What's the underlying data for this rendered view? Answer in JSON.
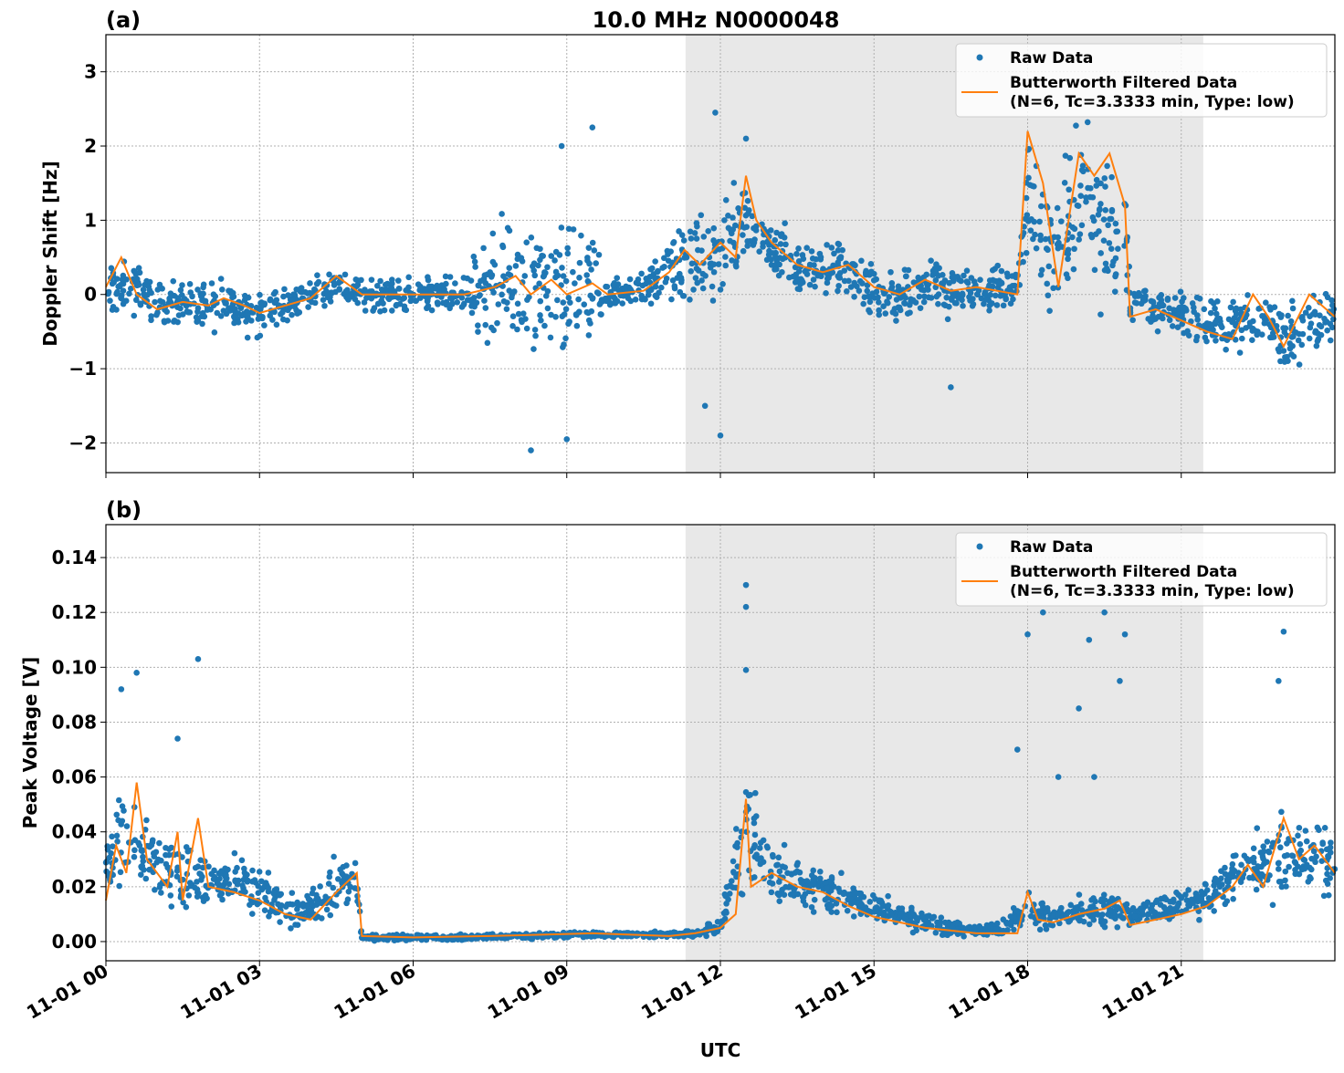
{
  "chart_data": [
    {
      "type": "scatter",
      "panel_label": "(a)",
      "title": "10.0 MHz N0000048",
      "xlabel": "",
      "ylabel": "Doppler Shift [Hz]",
      "xlim_hours": [
        0,
        24
      ],
      "ylim": [
        -2.4,
        3.5
      ],
      "yticks": [
        -2,
        -1,
        0,
        1,
        2,
        3
      ],
      "ytick_labels": [
        "−2",
        "−1",
        "0",
        "1",
        "2",
        "3"
      ],
      "grid": true,
      "shaded_interval_hours": [
        11.32,
        21.43
      ],
      "legend": {
        "placement": "top-right",
        "entries": [
          "Raw Data",
          "Butterworth Filtered Data",
          "(N=6, Tc=3.3333 min, Type: low)"
        ]
      },
      "raw_envelope": [
        [
          0,
          -0.5,
          0.5
        ],
        [
          0.5,
          -0.4,
          0.6
        ],
        [
          1,
          -0.5,
          0.3
        ],
        [
          1.5,
          -0.5,
          0.3
        ],
        [
          2,
          -0.6,
          0.3
        ],
        [
          2.5,
          -0.6,
          0.3
        ],
        [
          3,
          -0.7,
          0.2
        ],
        [
          3.5,
          -0.5,
          0.2
        ],
        [
          4,
          -0.3,
          0.3
        ],
        [
          4.5,
          -0.1,
          0.4
        ],
        [
          5,
          -0.3,
          0.3
        ],
        [
          5.5,
          -0.3,
          0.3
        ],
        [
          6,
          -0.3,
          0.3
        ],
        [
          6.5,
          -0.3,
          0.3
        ],
        [
          7,
          -0.4,
          0.4
        ],
        [
          7.5,
          -1.0,
          1.2
        ],
        [
          8,
          -1.2,
          1.3
        ],
        [
          8.5,
          -1.2,
          1.2
        ],
        [
          9,
          -1.3,
          1.2
        ],
        [
          9.5,
          -1.2,
          1.2
        ],
        [
          9.8,
          -0.3,
          0.3
        ],
        [
          10.5,
          -0.3,
          0.4
        ],
        [
          11,
          -0.3,
          1.0
        ],
        [
          11.5,
          -0.5,
          1.3
        ],
        [
          12,
          -0.3,
          1.4
        ],
        [
          12.5,
          0.2,
          1.8
        ],
        [
          13,
          0.0,
          1.2
        ],
        [
          13.5,
          -0.1,
          0.9
        ],
        [
          14,
          -0.1,
          0.8
        ],
        [
          14.5,
          -0.2,
          0.8
        ],
        [
          15,
          -0.5,
          0.6
        ],
        [
          15.5,
          -0.6,
          0.7
        ],
        [
          16,
          -0.4,
          0.6
        ],
        [
          16.5,
          -0.5,
          0.6
        ],
        [
          17,
          -0.4,
          0.5
        ],
        [
          17.8,
          -0.3,
          0.5
        ],
        [
          18,
          -0.2,
          2.9
        ],
        [
          18.5,
          -0.5,
          1.5
        ],
        [
          19,
          -0.3,
          2.8
        ],
        [
          19.5,
          -0.5,
          2.5
        ],
        [
          19.9,
          -0.5,
          2.3
        ],
        [
          20,
          -0.5,
          0.3
        ],
        [
          20.5,
          -0.6,
          0.2
        ],
        [
          21,
          -0.6,
          0.1
        ],
        [
          21.5,
          -0.8,
          0.0
        ],
        [
          22,
          -1.0,
          0.1
        ],
        [
          22.5,
          -0.8,
          0.3
        ],
        [
          23,
          -1.2,
          0.0
        ],
        [
          23.5,
          -0.9,
          0.2
        ],
        [
          24,
          -0.7,
          0.1
        ]
      ],
      "raw_outliers": [
        [
          8.9,
          2.0
        ],
        [
          9.5,
          2.25
        ],
        [
          11.9,
          2.45
        ],
        [
          12.5,
          2.1
        ],
        [
          8.3,
          -2.1
        ],
        [
          9.0,
          -1.95
        ],
        [
          12.0,
          -1.9
        ],
        [
          11.7,
          -1.5
        ],
        [
          16.5,
          -1.25
        ]
      ],
      "filtered": [
        [
          0,
          0.1
        ],
        [
          0.3,
          0.5
        ],
        [
          0.6,
          0.0
        ],
        [
          1,
          -0.2
        ],
        [
          1.5,
          -0.1
        ],
        [
          2,
          -0.15
        ],
        [
          2.3,
          -0.05
        ],
        [
          2.7,
          -0.15
        ],
        [
          3,
          -0.25
        ],
        [
          3.5,
          -0.15
        ],
        [
          4,
          -0.05
        ],
        [
          4.5,
          0.25
        ],
        [
          4.9,
          0.05
        ],
        [
          5,
          0.0
        ],
        [
          7,
          0.0
        ],
        [
          7.6,
          0.1
        ],
        [
          8,
          0.25
        ],
        [
          8.3,
          0.0
        ],
        [
          8.7,
          0.2
        ],
        [
          9,
          0.0
        ],
        [
          9.5,
          0.15
        ],
        [
          9.8,
          0.0
        ],
        [
          10.5,
          0.05
        ],
        [
          11,
          0.3
        ],
        [
          11.3,
          0.6
        ],
        [
          11.6,
          0.4
        ],
        [
          12,
          0.7
        ],
        [
          12.3,
          0.5
        ],
        [
          12.5,
          1.6
        ],
        [
          12.7,
          1.0
        ],
        [
          13,
          0.7
        ],
        [
          13.5,
          0.4
        ],
        [
          14,
          0.3
        ],
        [
          14.5,
          0.4
        ],
        [
          15,
          0.1
        ],
        [
          15.5,
          0.0
        ],
        [
          16,
          0.2
        ],
        [
          16.5,
          0.05
        ],
        [
          17,
          0.1
        ],
        [
          17.8,
          0.0
        ],
        [
          18,
          2.2
        ],
        [
          18.3,
          1.5
        ],
        [
          18.6,
          0.1
        ],
        [
          19,
          1.9
        ],
        [
          19.3,
          1.6
        ],
        [
          19.6,
          1.9
        ],
        [
          19.9,
          1.2
        ],
        [
          20,
          -0.3
        ],
        [
          20.5,
          -0.2
        ],
        [
          21,
          -0.35
        ],
        [
          21.5,
          -0.5
        ],
        [
          22,
          -0.6
        ],
        [
          22.4,
          0.0
        ],
        [
          22.7,
          -0.3
        ],
        [
          23,
          -0.7
        ],
        [
          23.5,
          0.0
        ],
        [
          24,
          -0.3
        ]
      ]
    },
    {
      "type": "scatter",
      "panel_label": "(b)",
      "xlabel": "UTC",
      "ylabel": "Peak Voltage [V]",
      "xlim_hours": [
        0,
        24
      ],
      "ylim": [
        -0.007,
        0.152
      ],
      "yticks": [
        0,
        0.02,
        0.04,
        0.06,
        0.08,
        0.1,
        0.12,
        0.14
      ],
      "ytick_labels": [
        "0.00",
        "0.02",
        "0.04",
        "0.06",
        "0.08",
        "0.10",
        "0.12",
        "0.14"
      ],
      "xticks_hours": [
        0,
        3,
        6,
        9,
        12,
        15,
        18,
        21
      ],
      "xtick_labels": [
        "11-01 00",
        "11-01 03",
        "11-01 06",
        "11-01 09",
        "11-01 12",
        "11-01 15",
        "11-01 18",
        "11-01 21"
      ],
      "grid": true,
      "shaded_interval_hours": [
        11.32,
        21.43
      ],
      "legend": {
        "placement": "top-right",
        "entries": [
          "Raw Data",
          "Butterworth Filtered Data",
          "(N=6, Tc=3.3333 min, Type: low)"
        ]
      },
      "raw_envelope": [
        [
          0,
          0.01,
          0.05
        ],
        [
          0.5,
          0.015,
          0.07
        ],
        [
          1,
          0.01,
          0.045
        ],
        [
          1.5,
          0.008,
          0.04
        ],
        [
          2,
          0.008,
          0.035
        ],
        [
          2.5,
          0.008,
          0.035
        ],
        [
          3,
          0.006,
          0.03
        ],
        [
          3.5,
          0.003,
          0.02
        ],
        [
          4,
          0.003,
          0.02
        ],
        [
          4.5,
          0.005,
          0.035
        ],
        [
          4.9,
          0.005,
          0.035
        ],
        [
          5,
          0.0,
          0.003
        ],
        [
          7,
          0.0,
          0.003
        ],
        [
          9,
          0.001,
          0.004
        ],
        [
          11,
          0.001,
          0.004
        ],
        [
          11.5,
          0.001,
          0.005
        ],
        [
          12,
          0.002,
          0.01
        ],
        [
          12.5,
          0.01,
          0.07
        ],
        [
          13,
          0.008,
          0.04
        ],
        [
          13.5,
          0.008,
          0.035
        ],
        [
          14,
          0.007,
          0.03
        ],
        [
          14.5,
          0.005,
          0.025
        ],
        [
          15,
          0.004,
          0.02
        ],
        [
          15.5,
          0.003,
          0.017
        ],
        [
          16,
          0.002,
          0.012
        ],
        [
          16.5,
          0.001,
          0.009
        ],
        [
          17,
          0.001,
          0.007
        ],
        [
          17.5,
          0.001,
          0.008
        ],
        [
          18,
          0.003,
          0.02
        ],
        [
          18.5,
          0.003,
          0.015
        ],
        [
          19,
          0.004,
          0.018
        ],
        [
          19.5,
          0.004,
          0.02
        ],
        [
          20,
          0.004,
          0.015
        ],
        [
          20.5,
          0.005,
          0.018
        ],
        [
          21,
          0.006,
          0.02
        ],
        [
          21.5,
          0.008,
          0.025
        ],
        [
          22,
          0.01,
          0.035
        ],
        [
          22.5,
          0.012,
          0.045
        ],
        [
          23,
          0.012,
          0.05
        ],
        [
          23.5,
          0.012,
          0.05
        ],
        [
          24,
          0.01,
          0.045
        ]
      ],
      "raw_outliers": [
        [
          1.8,
          0.103
        ],
        [
          0.6,
          0.098
        ],
        [
          0.3,
          0.092
        ],
        [
          1.4,
          0.074
        ],
        [
          12.5,
          0.13
        ],
        [
          12.5,
          0.122
        ],
        [
          12.5,
          0.099
        ],
        [
          18.3,
          0.12
        ],
        [
          18.0,
          0.112
        ],
        [
          19.2,
          0.11
        ],
        [
          19.5,
          0.12
        ],
        [
          19.8,
          0.095
        ],
        [
          19.9,
          0.112
        ],
        [
          23.0,
          0.113
        ],
        [
          22.9,
          0.095
        ],
        [
          19.0,
          0.085
        ],
        [
          19.3,
          0.06
        ],
        [
          17.8,
          0.07
        ],
        [
          18.6,
          0.06
        ]
      ],
      "filtered": [
        [
          0,
          0.015
        ],
        [
          0.2,
          0.035
        ],
        [
          0.4,
          0.025
        ],
        [
          0.6,
          0.058
        ],
        [
          0.8,
          0.03
        ],
        [
          1,
          0.025
        ],
        [
          1.2,
          0.02
        ],
        [
          1.4,
          0.04
        ],
        [
          1.5,
          0.015
        ],
        [
          1.8,
          0.045
        ],
        [
          2,
          0.02
        ],
        [
          2.5,
          0.018
        ],
        [
          3,
          0.015
        ],
        [
          3.5,
          0.01
        ],
        [
          4,
          0.008
        ],
        [
          4.5,
          0.018
        ],
        [
          4.9,
          0.025
        ],
        [
          5,
          0.002
        ],
        [
          6,
          0.0015
        ],
        [
          7.5,
          0.002
        ],
        [
          9.5,
          0.003
        ],
        [
          11,
          0.002
        ],
        [
          11.5,
          0.003
        ],
        [
          12,
          0.005
        ],
        [
          12.3,
          0.01
        ],
        [
          12.5,
          0.052
        ],
        [
          12.6,
          0.02
        ],
        [
          13,
          0.025
        ],
        [
          13.5,
          0.02
        ],
        [
          14,
          0.018
        ],
        [
          14.5,
          0.013
        ],
        [
          15,
          0.009
        ],
        [
          15.5,
          0.007
        ],
        [
          16,
          0.005
        ],
        [
          16.5,
          0.004
        ],
        [
          17,
          0.003
        ],
        [
          17.8,
          0.003
        ],
        [
          18,
          0.018
        ],
        [
          18.2,
          0.008
        ],
        [
          18.5,
          0.007
        ],
        [
          19,
          0.01
        ],
        [
          19.5,
          0.012
        ],
        [
          19.8,
          0.015
        ],
        [
          20,
          0.006
        ],
        [
          20.5,
          0.008
        ],
        [
          21,
          0.01
        ],
        [
          21.5,
          0.013
        ],
        [
          22,
          0.02
        ],
        [
          22.3,
          0.028
        ],
        [
          22.6,
          0.02
        ],
        [
          23,
          0.045
        ],
        [
          23.3,
          0.03
        ],
        [
          23.6,
          0.035
        ],
        [
          24,
          0.025
        ]
      ]
    }
  ],
  "colors": {
    "raw": "#1f77b4",
    "filtered": "#ff7f0e",
    "shade": "#e8e8e8",
    "grid": "#b0b0b0"
  }
}
